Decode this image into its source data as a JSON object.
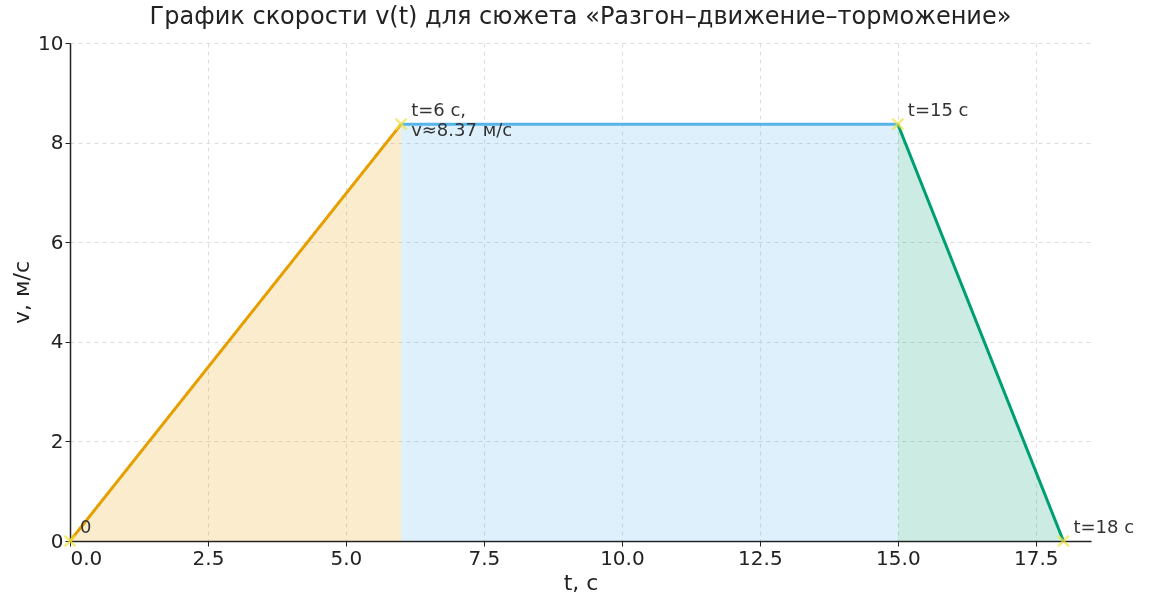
{
  "chart_data": {
    "type": "area",
    "title": "График скорости v(t) для сюжета «Разгон–движение–торможение»",
    "xlabel": "t, с",
    "ylabel": "v, м/с",
    "xlim": [
      0,
      18.5
    ],
    "xticks": [
      {
        "value": 0,
        "label": "0.0"
      },
      {
        "value": 2.5,
        "label": "2.5"
      },
      {
        "value": 5,
        "label": "5.0"
      },
      {
        "value": 7.5,
        "label": "7.5"
      },
      {
        "value": 10,
        "label": "10.0"
      },
      {
        "value": 12.5,
        "label": "12.5"
      },
      {
        "value": 15,
        "label": "15.0"
      },
      {
        "value": 17.5,
        "label": "17.5"
      }
    ],
    "ylim": [
      0,
      10
    ],
    "yticks": [
      0,
      2,
      4,
      6,
      8,
      10
    ],
    "grid": true,
    "series": [
      {
        "color": "#e69f00",
        "x": [
          0,
          6
        ],
        "values": [
          0,
          8.37
        ]
      },
      {
        "color": "#56b4e9",
        "x": [
          6,
          15
        ],
        "values": [
          8.37,
          8.37
        ]
      },
      {
        "color": "#009e73",
        "x": [
          15,
          18
        ],
        "values": [
          8.37,
          0
        ]
      },
      {
        "type": "scatter",
        "color": "#f0e442",
        "marker": "cross",
        "x": [
          0,
          6,
          15,
          18
        ],
        "values": [
          0,
          8.37,
          8.37,
          0
        ]
      }
    ],
    "annotations": [
      {
        "text": "0",
        "x": 0,
        "y": 0
      },
      {
        "text": "t=6 с,\nv≈8.37 м/с",
        "x": 6,
        "y": 8.37
      },
      {
        "text": "t=15 с",
        "x": 15,
        "y": 8.37
      },
      {
        "text": "t=18 с",
        "x": 18,
        "y": 0
      }
    ]
  }
}
